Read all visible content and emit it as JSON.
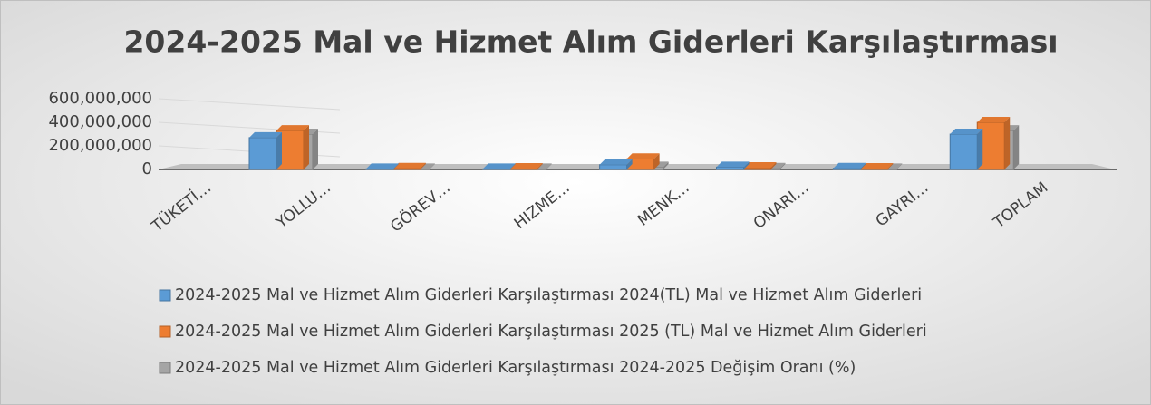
{
  "chart_data": {
    "type": "bar",
    "title": "2024-2025 Mal ve Hizmet Alım Giderleri Karşılaştırması",
    "categories": [
      "TÜKETİ…",
      "YOLLU…",
      "GÖREV…",
      "HIZME…",
      "MENK…",
      "ONARI…",
      "GAYRI…",
      "TOPLAM"
    ],
    "series": [
      {
        "name": "2024-2025 Mal ve Hizmet Alım Giderleri Karşılaştırması 2024(TL) Mal ve Hizmet Alım Giderleri",
        "color": "#5b9bd5",
        "values": [
          270000000,
          5000000,
          5000000,
          40000000,
          20000000,
          10000000,
          300000000,
          null
        ]
      },
      {
        "name": "2024-2025 Mal ve Hizmet Alım Giderleri Karşılaştırması 2025 (TL) Mal ve Hizmet Alım Giderleri",
        "color": "#ed7d31",
        "values": [
          330000000,
          10000000,
          8000000,
          90000000,
          15000000,
          8000000,
          400000000,
          null
        ]
      },
      {
        "name": "2024-2025 Mal ve Hizmet Alım Giderleri Karşılaştırması 2024-2025 Değişim Oranı (%)",
        "color": "#a5a5a5",
        "values": [
          300000000,
          5000000,
          5000000,
          20000000,
          10000000,
          5000000,
          330000000,
          null
        ]
      }
    ],
    "ylim": [
      0,
      600000000
    ],
    "yticks": [
      {
        "value": 0,
        "label": "0"
      },
      {
        "value": 200000000,
        "label": "200,000,000"
      },
      {
        "value": 400000000,
        "label": "400,000,000"
      },
      {
        "value": 600000000,
        "label": "600,000,000"
      }
    ],
    "grid": true
  }
}
